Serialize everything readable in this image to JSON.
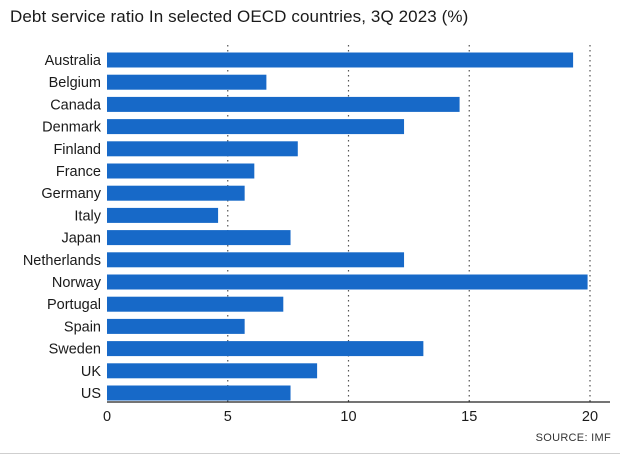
{
  "title": "Debt service ratio In selected OECD countries, 3Q 2023 (%)",
  "source": "SOURCE: IMF",
  "colors": {
    "bar": "#1769c8",
    "grid": "#555555",
    "axis": "#222222",
    "text": "#1a1a1a"
  },
  "chart_data": {
    "type": "bar",
    "orientation": "horizontal",
    "title": "Debt service ratio In selected OECD countries, 3Q 2023 (%)",
    "categories": [
      "Australia",
      "Belgium",
      "Canada",
      "Denmark",
      "Finland",
      "France",
      "Germany",
      "Italy",
      "Japan",
      "Netherlands",
      "Norway",
      "Portugal",
      "Spain",
      "Sweden",
      "UK",
      "US"
    ],
    "values": [
      19.3,
      6.6,
      14.6,
      12.3,
      7.9,
      6.1,
      5.7,
      4.6,
      7.6,
      12.3,
      19.9,
      7.3,
      5.7,
      13.1,
      8.7,
      7.6
    ],
    "xlim": [
      0,
      21
    ],
    "xticks": [
      0,
      5,
      10,
      15,
      20
    ],
    "grid": "vertical dotted",
    "xlabel": "",
    "ylabel": "",
    "source": "SOURCE: IMF"
  }
}
